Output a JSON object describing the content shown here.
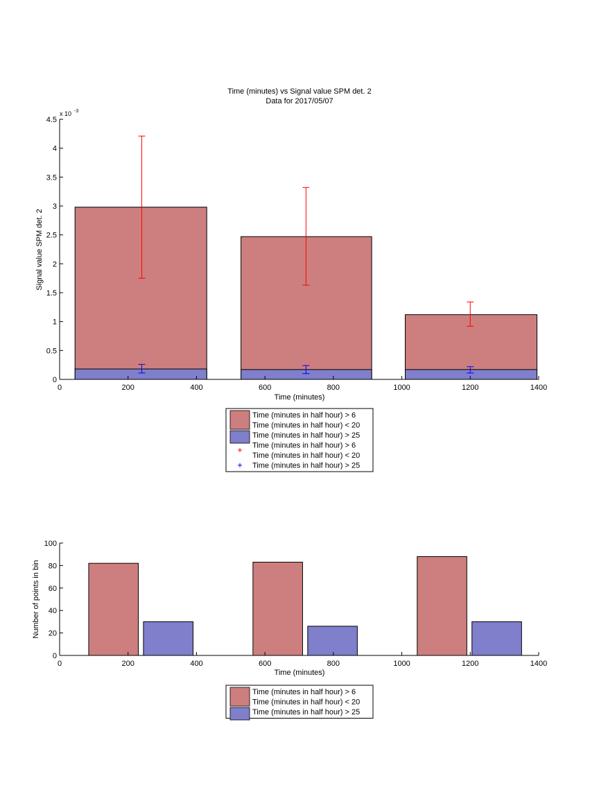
{
  "colors": {
    "red_bar": "#cc7f7e",
    "blue_bar": "#7f7fcc",
    "red_err": "#ff0000",
    "blue_err": "#0000ff",
    "axis": "#000000"
  },
  "chart_data": [
    {
      "type": "bar",
      "title": "Time (minutes) vs Signal value SPM det. 2",
      "subtitle": "Data for 2017/05/07",
      "xlabel": "Time (minutes)",
      "ylabel": "Signal value SPM det. 2",
      "exponent_base": "x 10",
      "exponent_power": "-3",
      "xlim": [
        0,
        1400
      ],
      "ylim": [
        0,
        4.5
      ],
      "xticks": [
        0,
        200,
        400,
        600,
        800,
        1000,
        1200,
        1400
      ],
      "yticks": [
        0,
        0.5,
        1,
        1.5,
        2,
        2.5,
        3,
        3.5,
        4,
        4.5
      ],
      "grid": false,
      "legend_placement": "below",
      "bars": [
        {
          "x_start": 45,
          "x_end": 430,
          "value": 2.98
        },
        {
          "x_start": 530,
          "x_end": 912,
          "value": 2.47
        },
        {
          "x_start": 1010,
          "x_end": 1395,
          "value": 1.12
        }
      ],
      "overlay_bars": [
        {
          "x_start": 45,
          "x_end": 430,
          "value": 0.18
        },
        {
          "x_start": 530,
          "x_end": 912,
          "value": 0.17
        },
        {
          "x_start": 1010,
          "x_end": 1395,
          "value": 0.17
        }
      ],
      "error_bars": [
        {
          "x": 240,
          "low": 1.75,
          "high": 4.21,
          "color": "red"
        },
        {
          "x": 720,
          "low": 1.63,
          "high": 3.32,
          "color": "red"
        },
        {
          "x": 1200,
          "low": 0.92,
          "high": 1.34,
          "color": "red"
        },
        {
          "x": 240,
          "low": 0.11,
          "high": 0.26,
          "color": "blue"
        },
        {
          "x": 720,
          "low": 0.1,
          "high": 0.24,
          "color": "blue"
        },
        {
          "x": 1200,
          "low": 0.11,
          "high": 0.22,
          "color": "blue"
        }
      ],
      "legend": [
        {
          "kind": "patch",
          "color": "red",
          "lines": [
            "Time (minutes in half hour) > 6",
            "Time (minutes in half hour) < 20"
          ]
        },
        {
          "kind": "patch",
          "color": "blue",
          "lines": [
            "Time (minutes in half hour) > 25"
          ]
        },
        {
          "kind": "marker",
          "color": "red",
          "lines": [
            "Time (minutes in half hour) > 6",
            "Time (minutes in half hour) < 20"
          ]
        },
        {
          "kind": "marker",
          "color": "blue",
          "lines": [
            "Time (minutes in half hour) > 25"
          ]
        }
      ]
    },
    {
      "type": "bar",
      "xlabel": "Time (minutes)",
      "ylabel": "Number of points in bin",
      "xlim": [
        0,
        1400
      ],
      "ylim": [
        0,
        100
      ],
      "xticks": [
        0,
        200,
        400,
        600,
        800,
        1000,
        1200,
        1400
      ],
      "yticks": [
        0,
        20,
        40,
        60,
        80,
        100
      ],
      "grid": false,
      "legend_placement": "below",
      "series": [
        {
          "color": "red",
          "bars": [
            {
              "x_start": 85,
              "x_end": 230,
              "value": 82
            },
            {
              "x_start": 565,
              "x_end": 710,
              "value": 83
            },
            {
              "x_start": 1045,
              "x_end": 1190,
              "value": 88
            }
          ]
        },
        {
          "color": "blue",
          "bars": [
            {
              "x_start": 245,
              "x_end": 390,
              "value": 30
            },
            {
              "x_start": 725,
              "x_end": 870,
              "value": 26
            },
            {
              "x_start": 1205,
              "x_end": 1350,
              "value": 30
            }
          ]
        }
      ],
      "legend": [
        {
          "kind": "patch",
          "color": "red",
          "lines": [
            "Time (minutes in half hour) > 6",
            "Time (minutes in half hour) < 20"
          ]
        },
        {
          "kind": "patch",
          "color": "blue",
          "lines": [
            "Time (minutes in half hour) > 25"
          ]
        }
      ]
    }
  ]
}
